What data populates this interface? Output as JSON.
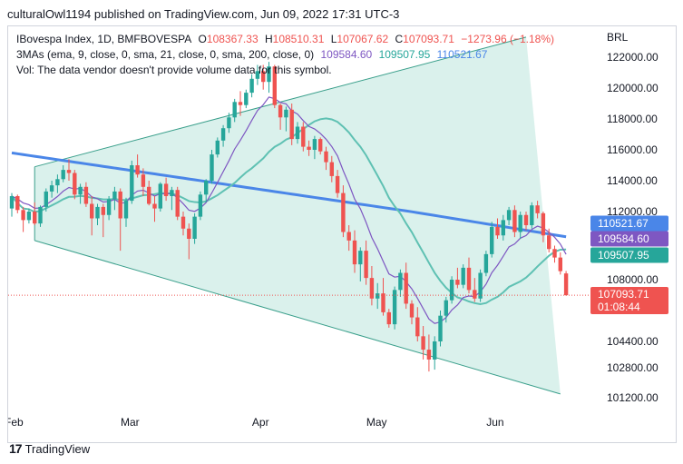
{
  "header": "culturalOwl1194 published on TradingView.com, Jun 09, 2022 17:31 UTC-3",
  "legend": {
    "title": "IBovespa Index, 1D, BMFBOVESPA",
    "o_label": "O",
    "o_value": "108367.33",
    "h_label": "H",
    "h_value": "108510.31",
    "l_label": "L",
    "l_value": "107067.62",
    "c_label": "C",
    "c_value": "107093.71",
    "change": "−1273.96 (−1.18%)",
    "ma_label": "3MAs (ema, 9, close, 0, sma, 21, close, 0, sma, 200, close, 0)",
    "ma_values": [
      "109584.60",
      "109507.95",
      "110521.67"
    ],
    "vol_note": "Vol: The data vendor doesn't provide volume data for this symbol."
  },
  "footer": {
    "brand": "TradingView",
    "logo": "17"
  },
  "colors": {
    "up": "#26a69a",
    "down": "#ef5350",
    "ema9": "#7e57c2",
    "sma21": "#5fc1b3",
    "sma200": "#4a86e8",
    "channel_fill": "#d6f0ea",
    "channel_line": "#3a9f8b",
    "price_label": "#ef5350"
  },
  "chart_data": {
    "type": "candlestick",
    "currency": "BRL",
    "y_ticks": [
      122000,
      120000,
      118000,
      116000,
      114000,
      112000,
      108000,
      104400,
      102800,
      101200
    ],
    "x_ticks": [
      {
        "label": "Feb",
        "day": 0
      },
      {
        "label": "Mar",
        "day": 20
      },
      {
        "label": "Apr",
        "day": 43
      },
      {
        "label": "May",
        "day": 63
      },
      {
        "label": "Jun",
        "day": 84
      }
    ],
    "price_labels": [
      {
        "text": "110521.67",
        "value": 110521.67,
        "color": "#4a86e8"
      },
      {
        "text": "109584.60",
        "value": 109584.6,
        "color": "#7e57c2"
      },
      {
        "text": "109507.95",
        "value": 109507.95,
        "color": "#26a69a"
      },
      {
        "text": "107093.71",
        "sub": "01:08:44",
        "value": 107093.71,
        "color": "#ef5350"
      }
    ],
    "channel": {
      "upper": [
        [
          4,
          114900
        ],
        [
          90,
          123300
        ]
      ],
      "lower": [
        [
          4,
          110300
        ],
        [
          96,
          101400
        ]
      ]
    },
    "last_price": 107093.71,
    "candles": [
      [
        112200,
        113200,
        111700,
        113000
      ],
      [
        113000,
        113100,
        111900,
        112100
      ],
      [
        112100,
        112300,
        110800,
        111500
      ],
      [
        111500,
        112200,
        111300,
        112000
      ],
      [
        112000,
        112600,
        111200,
        111300
      ],
      [
        111300,
        112400,
        111100,
        112300
      ],
      [
        112300,
        113500,
        112000,
        113300
      ],
      [
        113300,
        114000,
        112900,
        113700
      ],
      [
        113700,
        114400,
        113200,
        114100
      ],
      [
        114100,
        115000,
        113900,
        114700
      ],
      [
        114700,
        115400,
        114000,
        114500
      ],
      [
        114500,
        114700,
        112800,
        113100
      ],
      [
        113100,
        113800,
        112500,
        113600
      ],
      [
        113600,
        113900,
        112300,
        112500
      ],
      [
        112500,
        113000,
        110600,
        111600
      ],
      [
        111600,
        112500,
        111200,
        112300
      ],
      [
        112300,
        112500,
        110500,
        111800
      ],
      [
        111800,
        113000,
        111500,
        112800
      ],
      [
        112800,
        113600,
        112100,
        113300
      ],
      [
        113300,
        113500,
        109700,
        111600
      ],
      [
        111600,
        112900,
        111100,
        112700
      ],
      [
        112700,
        115300,
        112500,
        115000
      ],
      [
        115000,
        115700,
        114200,
        114400
      ],
      [
        114400,
        114800,
        113000,
        113600
      ],
      [
        113600,
        114000,
        112400,
        112500
      ],
      [
        112500,
        113000,
        111400,
        112200
      ],
      [
        112200,
        113900,
        112000,
        113800
      ],
      [
        113800,
        114200,
        112700,
        113000
      ],
      [
        113000,
        113600,
        112100,
        113400
      ],
      [
        113400,
        113600,
        111500,
        111700
      ],
      [
        111700,
        112000,
        110600,
        111000
      ],
      [
        111000,
        111300,
        109200,
        110400
      ],
      [
        110400,
        111900,
        110100,
        111700
      ],
      [
        111700,
        113300,
        111500,
        113100
      ],
      [
        113100,
        114100,
        112600,
        114000
      ],
      [
        114000,
        116000,
        113800,
        115700
      ],
      [
        115700,
        116800,
        115500,
        116600
      ],
      [
        116600,
        117600,
        116200,
        117400
      ],
      [
        117400,
        118400,
        117100,
        118100
      ],
      [
        118100,
        119300,
        117800,
        119100
      ],
      [
        119100,
        119800,
        118200,
        118900
      ],
      [
        118900,
        119900,
        118700,
        119700
      ],
      [
        119700,
        120900,
        119400,
        120600
      ],
      [
        120600,
        121500,
        120200,
        121100
      ],
      [
        121100,
        121500,
        119900,
        120400
      ],
      [
        120400,
        121700,
        119700,
        121400
      ],
      [
        121400,
        121500,
        118700,
        118900
      ],
      [
        118900,
        119000,
        117300,
        118100
      ],
      [
        118100,
        118800,
        117200,
        118600
      ],
      [
        118600,
        119000,
        116300,
        116700
      ],
      [
        116700,
        117800,
        116400,
        117500
      ],
      [
        117500,
        117800,
        115900,
        116200
      ],
      [
        116200,
        116600,
        115600,
        116000
      ],
      [
        116000,
        116900,
        115400,
        116700
      ],
      [
        116700,
        116800,
        115700,
        115900
      ],
      [
        115900,
        116200,
        114700,
        115200
      ],
      [
        115200,
        115600,
        113900,
        114300
      ],
      [
        114300,
        114700,
        112900,
        113200
      ],
      [
        113200,
        113700,
        110500,
        110800
      ],
      [
        110800,
        111200,
        109700,
        110300
      ],
      [
        110300,
        110900,
        108400,
        108900
      ],
      [
        108900,
        109900,
        107900,
        109700
      ],
      [
        109700,
        110300,
        107700,
        108100
      ],
      [
        108100,
        108800,
        106500,
        106900
      ],
      [
        106900,
        107800,
        106300,
        107200
      ],
      [
        107200,
        108100,
        105900,
        106100
      ],
      [
        106100,
        106300,
        105200,
        105400
      ],
      [
        105400,
        107600,
        105100,
        107400
      ],
      [
        107400,
        108600,
        107000,
        108400
      ],
      [
        108400,
        109000,
        106300,
        106600
      ],
      [
        106600,
        106800,
        105400,
        105800
      ],
      [
        105800,
        106400,
        104400,
        104700
      ],
      [
        104700,
        105300,
        103300,
        103900
      ],
      [
        103900,
        104800,
        102600,
        103300
      ],
      [
        103300,
        104700,
        102700,
        104400
      ],
      [
        104400,
        106200,
        104100,
        105900
      ],
      [
        105900,
        107000,
        105500,
        106800
      ],
      [
        106800,
        108200,
        106600,
        108000
      ],
      [
        108000,
        108700,
        107500,
        107700
      ],
      [
        107700,
        108900,
        107500,
        108700
      ],
      [
        108700,
        109300,
        107200,
        107400
      ],
      [
        107400,
        108100,
        106700,
        106900
      ],
      [
        106900,
        108600,
        106700,
        108400
      ],
      [
        108400,
        109700,
        108200,
        109500
      ],
      [
        109500,
        111400,
        109300,
        111100
      ],
      [
        111100,
        111600,
        110400,
        110600
      ],
      [
        110600,
        111800,
        110300,
        111500
      ],
      [
        111500,
        112300,
        111200,
        112100
      ],
      [
        112100,
        112400,
        110500,
        110800
      ],
      [
        110800,
        112000,
        110400,
        111800
      ],
      [
        111800,
        112000,
        110900,
        111200
      ],
      [
        111200,
        112600,
        111000,
        112400
      ],
      [
        112400,
        112700,
        111600,
        111900
      ],
      [
        111900,
        112000,
        110200,
        110600
      ],
      [
        110600,
        111000,
        109600,
        109800
      ],
      [
        109800,
        110000,
        109000,
        109300
      ],
      [
        109300,
        109600,
        108300,
        108500
      ],
      [
        108367,
        108510,
        107068,
        107094
      ]
    ]
  }
}
